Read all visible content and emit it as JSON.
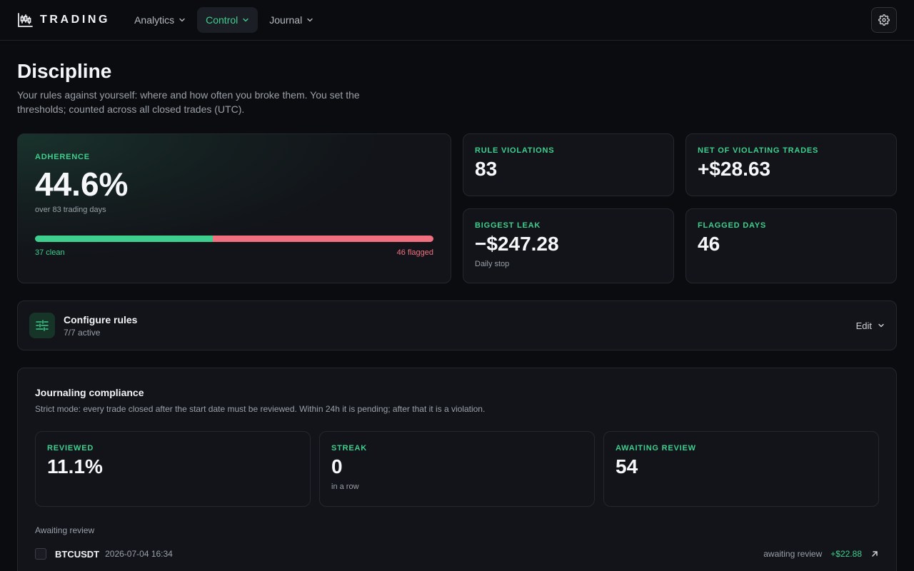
{
  "brand": {
    "name": "TRADING",
    "icon": "candlestick-chart-icon"
  },
  "nav": {
    "items": [
      {
        "label": "Analytics",
        "active": false
      },
      {
        "label": "Control",
        "active": true
      },
      {
        "label": "Journal",
        "active": false
      }
    ],
    "settings_icon": "gear-icon"
  },
  "colors": {
    "accent": "#3ecf8e",
    "danger": "#f07080",
    "background": "#0b0c0f",
    "card": "#121419"
  },
  "header": {
    "title": "Discipline",
    "subtitle": "Your rules against yourself: where and how often you broke them. You set the thresholds; counted across all closed trades (UTC)."
  },
  "adherence": {
    "label": "ADHERENCE",
    "value": "44.6%",
    "note": "over 83 trading days",
    "clean_fraction": 0.446,
    "clean_label": "37 clean",
    "flagged_label": "46 flagged"
  },
  "stats": {
    "violations": {
      "label": "RULE VIOLATIONS",
      "value": "83"
    },
    "net": {
      "label": "NET OF VIOLATING TRADES",
      "value": "+$28.63"
    },
    "leak": {
      "label": "BIGGEST LEAK",
      "value": "−$247.28",
      "note": "Daily stop"
    },
    "flagged": {
      "label": "FLAGGED DAYS",
      "value": "46"
    }
  },
  "rules": {
    "icon": "sliders-icon",
    "title": "Configure rules",
    "subtitle": "7/7 active",
    "edit_label": "Edit"
  },
  "journal": {
    "title": "Journaling compliance",
    "subtitle": "Strict mode: every trade closed after the start date must be reviewed. Within 24h it is pending; after that it is a violation.",
    "cards": [
      {
        "label": "REVIEWED",
        "value": "11.1%",
        "note": ""
      },
      {
        "label": "STREAK",
        "value": "0",
        "note": "in a row"
      },
      {
        "label": "AWAITING REVIEW",
        "value": "54",
        "note": ""
      }
    ],
    "awaiting_label": "Awaiting review",
    "rows": [
      {
        "symbol": "BTCUSDT",
        "datetime": "2026-07-04 16:34",
        "status": "awaiting review",
        "pnl": "+$22.88"
      }
    ]
  }
}
